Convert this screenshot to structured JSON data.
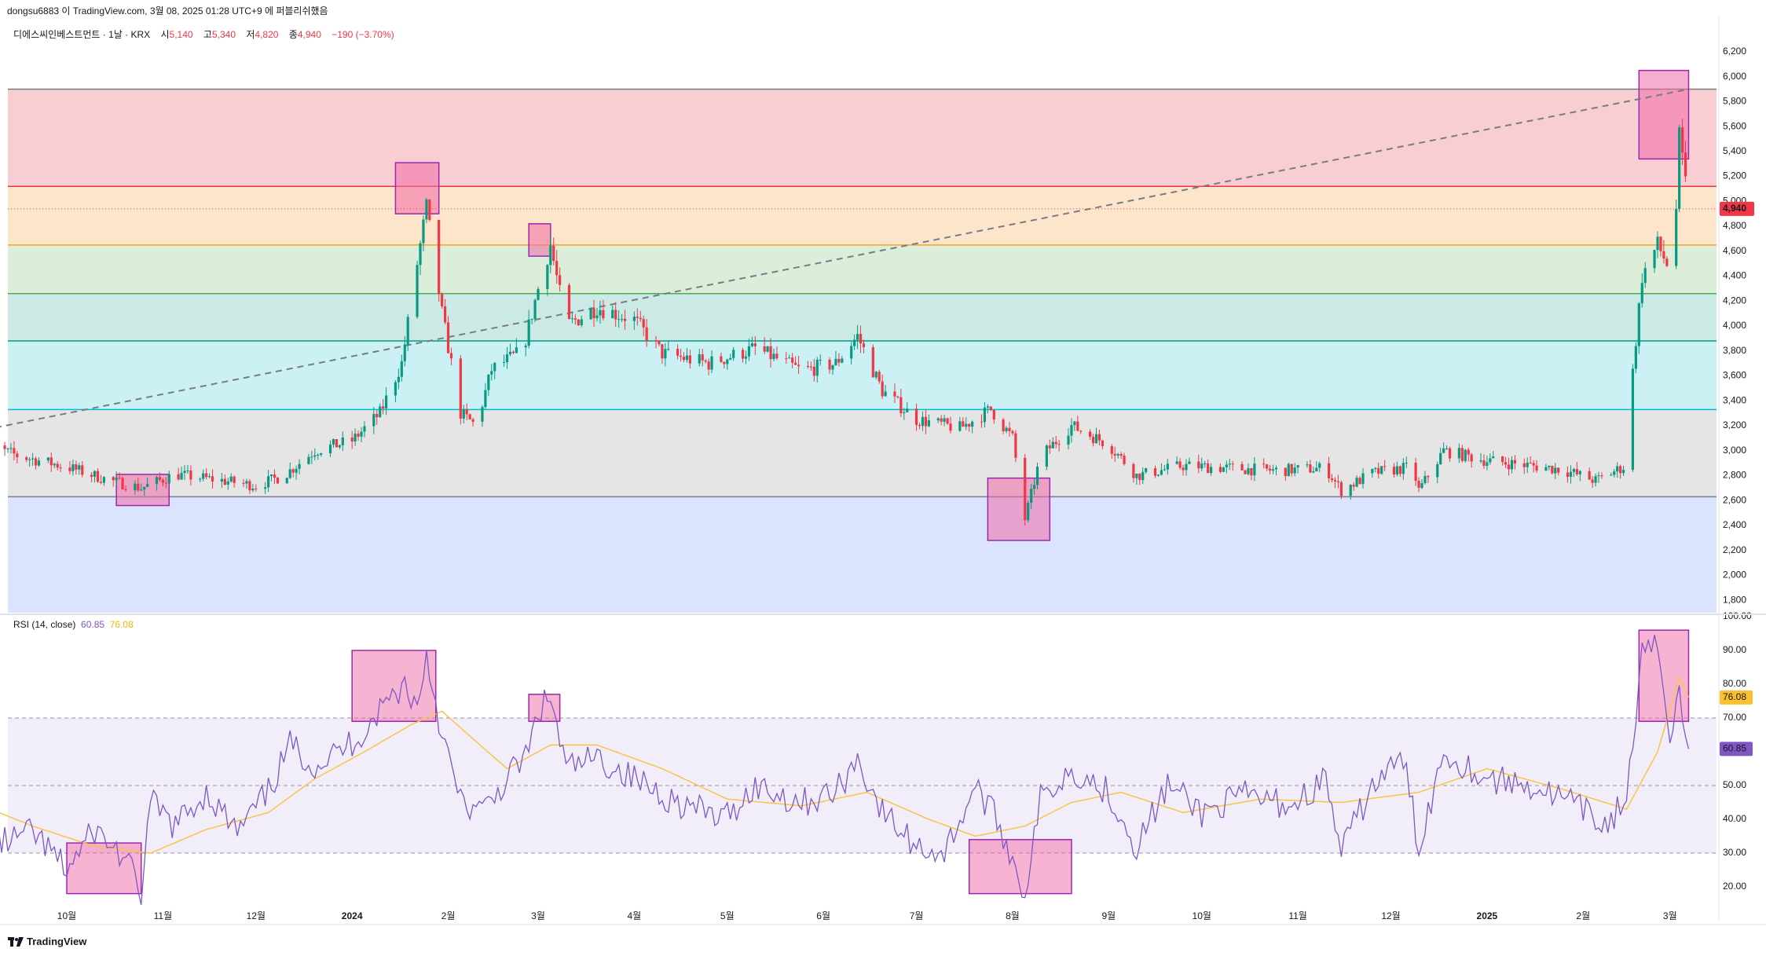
{
  "header": {
    "attribution": "dongsu6883 이 TradingView.com, 3월 08, 2025 01:28 UTC+9 에 퍼블리쉬했음"
  },
  "symbol": {
    "name": "디에스씨인베스트먼트 · 1날 · KRX",
    "open_label": "시",
    "open": "5,140",
    "high_label": "고",
    "high": "5,340",
    "low_label": "저",
    "low": "4,820",
    "close_label": "종",
    "close": "4,940",
    "change": "−190 (−3.70%)"
  },
  "rsi_legend": {
    "name": "RSI (14, close)",
    "rsi_value": "60.85",
    "ma_value": "76.08"
  },
  "brand": {
    "name": "TradingView"
  },
  "colors": {
    "up": "#089981",
    "down": "#f23645",
    "rsi_line": "#7e57c2",
    "rsi_ma": "#f7c548",
    "highlight_box": "#f06aa6",
    "highlight_border": "#9c27b0"
  },
  "chart_data": [
    {
      "type": "candlestick",
      "title": "디에스씨인베스트먼트 · 1날 · KRX",
      "price_axis_ticks": [
        "6,200",
        "6,000",
        "5,800",
        "5,600",
        "5,400",
        "5,200",
        "5,000",
        "4,800",
        "4,600",
        "4,400",
        "4,200",
        "4,000",
        "3,800",
        "3,600",
        "3,400",
        "3,200",
        "3,000",
        "2,800",
        "2,600",
        "2,400",
        "2,200",
        "2,000",
        "1,800"
      ],
      "price_tick_values": [
        6200,
        6000,
        5800,
        5600,
        5400,
        5200,
        5000,
        4800,
        4600,
        4400,
        4200,
        4000,
        3800,
        3600,
        3400,
        3200,
        3000,
        2800,
        2600,
        2400,
        2200,
        2000,
        1800
      ],
      "ylim": [
        1700,
        6300
      ],
      "last_price_label": "4,940",
      "last_price": 4940,
      "time_axis_labels": [
        "10월",
        "11월",
        "12월",
        "2024",
        "2월",
        "3월",
        "4월",
        "5월",
        "6월",
        "7월",
        "8월",
        "9월",
        "10월",
        "11월",
        "12월",
        "2025",
        "2월",
        "3월"
      ],
      "fib_levels": [
        5900,
        5120,
        4650,
        4260,
        3880,
        3330,
        2630
      ],
      "fib_band_colors": [
        "#f7c6cb",
        "#fde1c2",
        "#d6ebd3",
        "#c3e6e0",
        "#c2eff2",
        "#e0e0e0",
        "#d5dfff"
      ],
      "fib_line_colors": [
        "#787b86",
        "#f23645",
        "#f5a623",
        "#4caf50",
        "#089981",
        "#00bcd4",
        "#787b86"
      ],
      "trendline": {
        "from": {
          "date": "2023-09-01",
          "price": 3150
        },
        "to": {
          "date": "2025-03-07",
          "price": 5900
        }
      },
      "highlight_boxes": [
        {
          "from": "2023-10-17",
          "to": "2023-11-03",
          "low": 2560,
          "high": 2810
        },
        {
          "from": "2024-01-15",
          "to": "2024-01-29",
          "low": 4900,
          "high": 5310
        },
        {
          "from": "2024-02-27",
          "to": "2024-03-05",
          "low": 4560,
          "high": 4820
        },
        {
          "from": "2024-07-24",
          "to": "2024-08-13",
          "low": 2280,
          "high": 2780
        },
        {
          "from": "2025-02-19",
          "to": "2025-03-07",
          "low": 5340,
          "high": 6050
        }
      ],
      "series": [
        {
          "name": "Price",
          "points": [
            {
              "date": "2023-09-01",
              "close": 3080
            },
            {
              "date": "2023-09-15",
              "close": 2960
            },
            {
              "date": "2023-10-01",
              "close": 2870
            },
            {
              "date": "2023-10-15",
              "close": 2760
            },
            {
              "date": "2023-10-25",
              "close": 2700
            },
            {
              "date": "2023-11-05",
              "close": 2810
            },
            {
              "date": "2023-11-20",
              "close": 2760
            },
            {
              "date": "2023-12-01",
              "close": 2720
            },
            {
              "date": "2023-12-10",
              "close": 2800
            },
            {
              "date": "2023-12-20",
              "close": 3000
            },
            {
              "date": "2024-01-01",
              "close": 3080
            },
            {
              "date": "2024-01-10",
              "close": 3300
            },
            {
              "date": "2024-01-17",
              "close": 3700
            },
            {
              "date": "2024-01-22",
              "close": 4500
            },
            {
              "date": "2024-01-25",
              "close": 4950
            },
            {
              "date": "2024-01-30",
              "close": 4100
            },
            {
              "date": "2024-02-05",
              "close": 3300
            },
            {
              "date": "2024-02-10",
              "close": 3200
            },
            {
              "date": "2024-02-15",
              "close": 3650
            },
            {
              "date": "2024-02-25",
              "close": 3800
            },
            {
              "date": "2024-03-01",
              "close": 4300
            },
            {
              "date": "2024-03-05",
              "close": 4650
            },
            {
              "date": "2024-03-10",
              "close": 4000
            },
            {
              "date": "2024-03-20",
              "close": 4150
            },
            {
              "date": "2024-04-01",
              "close": 4050
            },
            {
              "date": "2024-04-10",
              "close": 3780
            },
            {
              "date": "2024-04-25",
              "close": 3700
            },
            {
              "date": "2024-05-10",
              "close": 3820
            },
            {
              "date": "2024-05-25",
              "close": 3640
            },
            {
              "date": "2024-06-05",
              "close": 3700
            },
            {
              "date": "2024-06-12",
              "close": 3920
            },
            {
              "date": "2024-06-20",
              "close": 3480
            },
            {
              "date": "2024-07-01",
              "close": 3250
            },
            {
              "date": "2024-07-15",
              "close": 3180
            },
            {
              "date": "2024-07-25",
              "close": 3330
            },
            {
              "date": "2024-08-01",
              "close": 3100
            },
            {
              "date": "2024-08-05",
              "close": 2450
            },
            {
              "date": "2024-08-10",
              "close": 2950
            },
            {
              "date": "2024-08-20",
              "close": 3200
            },
            {
              "date": "2024-09-01",
              "close": 3050
            },
            {
              "date": "2024-09-10",
              "close": 2800
            },
            {
              "date": "2024-09-25",
              "close": 2880
            },
            {
              "date": "2024-10-10",
              "close": 2860
            },
            {
              "date": "2024-10-25",
              "close": 2840
            },
            {
              "date": "2024-11-10",
              "close": 2860
            },
            {
              "date": "2024-11-15",
              "close": 2680
            },
            {
              "date": "2024-11-25",
              "close": 2820
            },
            {
              "date": "2024-12-08",
              "close": 2870
            },
            {
              "date": "2024-12-10",
              "close": 2680
            },
            {
              "date": "2024-12-18",
              "close": 3000
            },
            {
              "date": "2025-01-01",
              "close": 2920
            },
            {
              "date": "2025-01-15",
              "close": 2880
            },
            {
              "date": "2025-01-25",
              "close": 2850
            },
            {
              "date": "2025-02-05",
              "close": 2760
            },
            {
              "date": "2025-02-14",
              "close": 2870
            },
            {
              "date": "2025-02-20",
              "close": 4400
            },
            {
              "date": "2025-02-25",
              "close": 4650
            },
            {
              "date": "2025-03-02",
              "close": 4400
            },
            {
              "date": "2025-03-04",
              "close": 5500
            },
            {
              "date": "2025-03-06",
              "close": 5140
            },
            {
              "date": "2025-03-07",
              "close": 4940
            }
          ]
        }
      ]
    },
    {
      "type": "line",
      "title": "RSI (14, close)",
      "y_ticks": [
        "100.00",
        "90.00",
        "80.00",
        "70.00",
        "60.00",
        "50.00",
        "40.00",
        "30.00",
        "20.00"
      ],
      "y_tick_values": [
        100,
        90,
        80,
        70,
        60,
        50,
        40,
        30,
        20
      ],
      "ylim": [
        10,
        100
      ],
      "bands": {
        "upper": 70,
        "middle": 50,
        "lower": 30
      },
      "rsi_last": 60.85,
      "ma_last": 76.08,
      "highlight_boxes": [
        {
          "from": "2023-10-01",
          "to": "2023-10-25",
          "low": 18,
          "high": 33
        },
        {
          "from": "2024-01-01",
          "to": "2024-01-28",
          "low": 69,
          "high": 90
        },
        {
          "from": "2024-02-27",
          "to": "2024-03-08",
          "low": 69,
          "high": 77
        },
        {
          "from": "2024-07-18",
          "to": "2024-08-20",
          "low": 18,
          "high": 34
        },
        {
          "from": "2025-02-19",
          "to": "2025-03-07",
          "low": 69,
          "high": 96
        }
      ],
      "series": [
        {
          "name": "RSI",
          "points": [
            {
              "date": "2023-09-01",
              "value": 38
            },
            {
              "date": "2023-09-10",
              "value": 33
            },
            {
              "date": "2023-09-20",
              "value": 36
            },
            {
              "date": "2023-10-01",
              "value": 25
            },
            {
              "date": "2023-10-10",
              "value": 37
            },
            {
              "date": "2023-10-20",
              "value": 28
            },
            {
              "date": "2023-10-25",
              "value": 18
            },
            {
              "date": "2023-10-28",
              "value": 45
            },
            {
              "date": "2023-11-05",
              "value": 38
            },
            {
              "date": "2023-11-15",
              "value": 48
            },
            {
              "date": "2023-11-25",
              "value": 36
            },
            {
              "date": "2023-12-05",
              "value": 48
            },
            {
              "date": "2023-12-12",
              "value": 62
            },
            {
              "date": "2023-12-20",
              "value": 56
            },
            {
              "date": "2023-12-28",
              "value": 60
            },
            {
              "date": "2024-01-05",
              "value": 66
            },
            {
              "date": "2024-01-12",
              "value": 75
            },
            {
              "date": "2024-01-18",
              "value": 80
            },
            {
              "date": "2024-01-22",
              "value": 73
            },
            {
              "date": "2024-01-25",
              "value": 89
            },
            {
              "date": "2024-01-30",
              "value": 65
            },
            {
              "date": "2024-02-05",
              "value": 45
            },
            {
              "date": "2024-02-12",
              "value": 42
            },
            {
              "date": "2024-02-20",
              "value": 52
            },
            {
              "date": "2024-02-27",
              "value": 60
            },
            {
              "date": "2024-03-01",
              "value": 72
            },
            {
              "date": "2024-03-05",
              "value": 76
            },
            {
              "date": "2024-03-10",
              "value": 55
            },
            {
              "date": "2024-03-20",
              "value": 58
            },
            {
              "date": "2024-04-01",
              "value": 52
            },
            {
              "date": "2024-04-15",
              "value": 45
            },
            {
              "date": "2024-04-30",
              "value": 40
            },
            {
              "date": "2024-05-10",
              "value": 50
            },
            {
              "date": "2024-05-25",
              "value": 45
            },
            {
              "date": "2024-06-05",
              "value": 48
            },
            {
              "date": "2024-06-12",
              "value": 58
            },
            {
              "date": "2024-06-20",
              "value": 42
            },
            {
              "date": "2024-07-01",
              "value": 32
            },
            {
              "date": "2024-07-10",
              "value": 30
            },
            {
              "date": "2024-07-20",
              "value": 50
            },
            {
              "date": "2024-07-28",
              "value": 38
            },
            {
              "date": "2024-08-05",
              "value": 18
            },
            {
              "date": "2024-08-10",
              "value": 46
            },
            {
              "date": "2024-08-20",
              "value": 55
            },
            {
              "date": "2024-09-01",
              "value": 48
            },
            {
              "date": "2024-09-10",
              "value": 32
            },
            {
              "date": "2024-09-20",
              "value": 50
            },
            {
              "date": "2024-10-01",
              "value": 42
            },
            {
              "date": "2024-10-15",
              "value": 47
            },
            {
              "date": "2024-10-30",
              "value": 44
            },
            {
              "date": "2024-11-10",
              "value": 52
            },
            {
              "date": "2024-11-15",
              "value": 30
            },
            {
              "date": "2024-11-25",
              "value": 50
            },
            {
              "date": "2024-12-05",
              "value": 58
            },
            {
              "date": "2024-12-10",
              "value": 32
            },
            {
              "date": "2024-12-18",
              "value": 60
            },
            {
              "date": "2025-01-01",
              "value": 52
            },
            {
              "date": "2025-01-15",
              "value": 50
            },
            {
              "date": "2025-01-28",
              "value": 45
            },
            {
              "date": "2025-02-08",
              "value": 38
            },
            {
              "date": "2025-02-15",
              "value": 46
            },
            {
              "date": "2025-02-20",
              "value": 88
            },
            {
              "date": "2025-02-25",
              "value": 91
            },
            {
              "date": "2025-03-01",
              "value": 66
            },
            {
              "date": "2025-03-04",
              "value": 80
            },
            {
              "date": "2025-03-06",
              "value": 62
            },
            {
              "date": "2025-03-07",
              "value": 60.85
            }
          ]
        },
        {
          "name": "RSI MA",
          "points": [
            {
              "date": "2023-09-01",
              "value": 45
            },
            {
              "date": "2023-09-20",
              "value": 38
            },
            {
              "date": "2023-10-10",
              "value": 32
            },
            {
              "date": "2023-10-28",
              "value": 30
            },
            {
              "date": "2023-11-15",
              "value": 37
            },
            {
              "date": "2023-12-05",
              "value": 42
            },
            {
              "date": "2023-12-20",
              "value": 52
            },
            {
              "date": "2024-01-05",
              "value": 60
            },
            {
              "date": "2024-01-20",
              "value": 68
            },
            {
              "date": "2024-01-30",
              "value": 72
            },
            {
              "date": "2024-02-10",
              "value": 63
            },
            {
              "date": "2024-02-20",
              "value": 55
            },
            {
              "date": "2024-03-05",
              "value": 62
            },
            {
              "date": "2024-03-20",
              "value": 62
            },
            {
              "date": "2024-04-10",
              "value": 55
            },
            {
              "date": "2024-05-01",
              "value": 46
            },
            {
              "date": "2024-05-25",
              "value": 44
            },
            {
              "date": "2024-06-15",
              "value": 48
            },
            {
              "date": "2024-07-05",
              "value": 40
            },
            {
              "date": "2024-07-20",
              "value": 35
            },
            {
              "date": "2024-08-05",
              "value": 38
            },
            {
              "date": "2024-08-20",
              "value": 45
            },
            {
              "date": "2024-09-05",
              "value": 48
            },
            {
              "date": "2024-09-25",
              "value": 42
            },
            {
              "date": "2024-10-20",
              "value": 46
            },
            {
              "date": "2024-11-15",
              "value": 45
            },
            {
              "date": "2024-12-10",
              "value": 48
            },
            {
              "date": "2025-01-01",
              "value": 55
            },
            {
              "date": "2025-01-25",
              "value": 49
            },
            {
              "date": "2025-02-15",
              "value": 43
            },
            {
              "date": "2025-02-25",
              "value": 60
            },
            {
              "date": "2025-03-04",
              "value": 82
            },
            {
              "date": "2025-03-07",
              "value": 76.08
            }
          ]
        }
      ]
    }
  ]
}
